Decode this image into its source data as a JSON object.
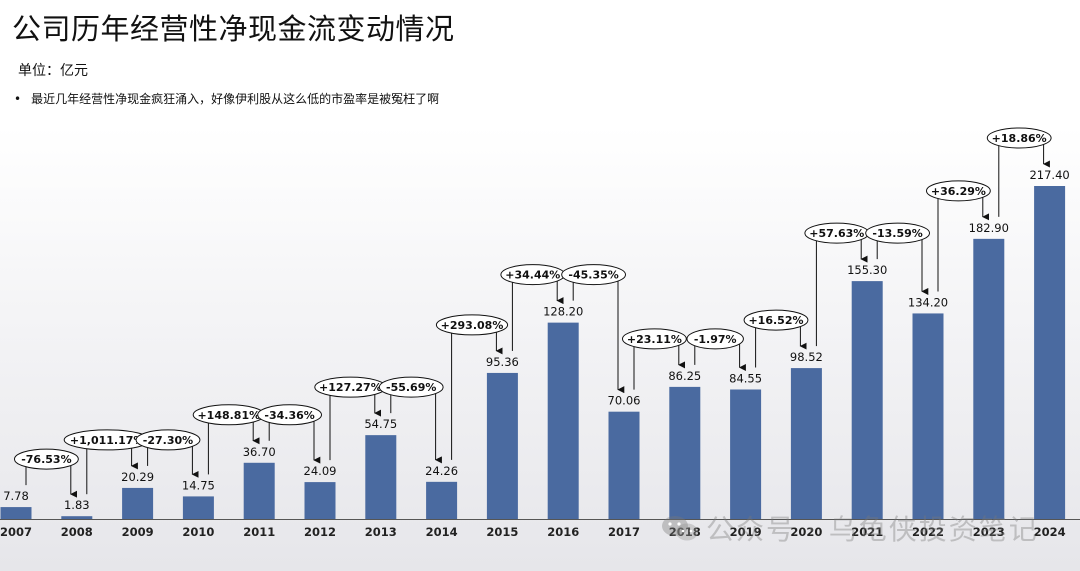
{
  "header": {
    "title": "公司历年经营性净现金流变动情况",
    "unit": "单位：亿元",
    "bullet": "•",
    "note": "最近几年经营性净现金疯狂涌入，好像伊利股从这么低的市盈率是被冤枉了啊"
  },
  "watermark": {
    "icon": "wechat-icon",
    "text": "公众号 · 乌龟侠投资笔记"
  },
  "chart_data": {
    "type": "bar",
    "categories": [
      "2007",
      "2008",
      "2009",
      "2010",
      "2011",
      "2012",
      "2013",
      "2014",
      "2015",
      "2016",
      "2017",
      "2018",
      "2019",
      "2020",
      "2021",
      "2022",
      "2023",
      "2024"
    ],
    "values": [
      7.78,
      1.83,
      20.29,
      14.75,
      36.7,
      24.09,
      54.75,
      24.26,
      95.36,
      128.2,
      70.06,
      86.25,
      84.55,
      98.52,
      155.3,
      134.2,
      182.9,
      217.4
    ],
    "value_labels": [
      "7.78",
      "1.83",
      "20.29",
      "14.75",
      "36.70",
      "24.09",
      "54.75",
      "24.26",
      "95.36",
      "128.20",
      "70.06",
      "86.25",
      "84.55",
      "98.52",
      "155.30",
      "134.20",
      "182.90",
      "217.40"
    ],
    "changes": [
      "-76.53%",
      "+1,011.17%",
      "-27.30%",
      "+148.81%",
      "-34.36%",
      "+127.27%",
      "-55.69%",
      "+293.08%",
      "+34.44%",
      "-45.35%",
      "+23.11%",
      "-1.97%",
      "+16.52%",
      "+57.63%",
      "-13.59%",
      "+36.29%",
      "+18.86%"
    ],
    "bar_color": "#4a6aa0",
    "ylim": [
      0,
      217.4
    ],
    "grid": false,
    "legend": "none"
  }
}
